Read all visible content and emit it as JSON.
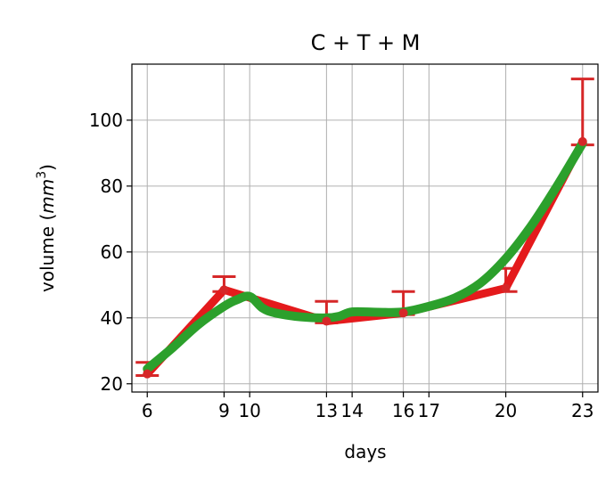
{
  "chart_data": {
    "type": "line",
    "title": "C + T + M",
    "xlabel": "days",
    "ylabel_prefix": "volume (",
    "ylabel_unit": "mm",
    "ylabel_sup": "3",
    "ylabel_suffix": ")",
    "xlim": [
      5.4,
      23.6
    ],
    "ylim": [
      17.5,
      117
    ],
    "xticks": [
      6,
      9,
      10,
      13,
      14,
      16,
      17,
      20,
      23
    ],
    "xtick_labels": [
      "6",
      "9",
      "10",
      "13",
      "14",
      "16",
      "17",
      "20",
      "23"
    ],
    "yticks": [
      20,
      40,
      60,
      80,
      100
    ],
    "ytick_labels": [
      "20",
      "40",
      "60",
      "80",
      "100"
    ],
    "grid": true,
    "colors": {
      "measured": "#e41a1c",
      "error": "#d62728",
      "fit": "#2ca02c"
    },
    "series": [
      {
        "kind": "measured",
        "x": [
          6,
          9,
          13,
          16,
          20,
          23
        ],
        "y": [
          23,
          48.5,
          39,
          41.5,
          49,
          93.5
        ],
        "yerr_upper": [
          26.5,
          52.5,
          45,
          48,
          55,
          112.5
        ],
        "yerr_lower": [
          22.5,
          48,
          38.5,
          41,
          48,
          92.5
        ]
      },
      {
        "kind": "fit",
        "x": [
          6,
          7,
          8,
          9,
          9.5,
          10,
          10.5,
          11,
          12,
          13,
          13.5,
          14,
          15,
          16,
          17,
          18,
          19,
          20,
          21,
          22,
          23
        ],
        "y": [
          24.5,
          31,
          38,
          43.5,
          45.5,
          46.5,
          43,
          41.5,
          40.3,
          40,
          40.5,
          41.8,
          41.7,
          41.8,
          43.5,
          46,
          50.5,
          58,
          68,
          80,
          93
        ]
      }
    ]
  }
}
